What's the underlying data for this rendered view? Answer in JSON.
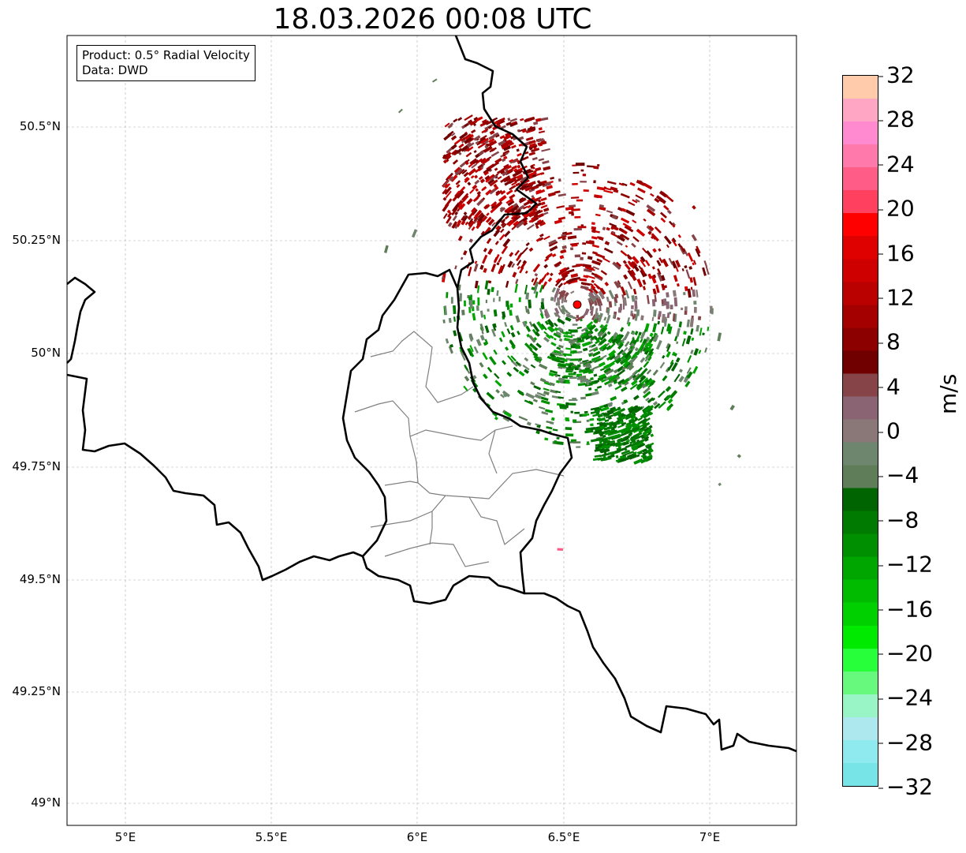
{
  "title": "18.03.2026 00:08 UTC",
  "info": {
    "product": "Product: 0.5° Radial Velocity",
    "data_source": "Data: DWD"
  },
  "axes": {
    "lat_ticks": [
      "50.5°N",
      "50.25°N",
      "50°N",
      "49.75°N",
      "49.5°N",
      "49.25°N",
      "49°N"
    ],
    "lon_ticks": [
      "5°E",
      "5.5°E",
      "6°E",
      "6.5°E",
      "7°E"
    ],
    "lon_range": [
      4.8,
      7.3
    ],
    "lat_range": [
      48.95,
      50.7
    ]
  },
  "radar_site": {
    "lon": 6.547,
    "lat": 50.11,
    "color": "#ff0000"
  },
  "colorbar": {
    "label": "m/s",
    "ticks": [
      "32",
      "28",
      "24",
      "20",
      "16",
      "12",
      "8",
      "4",
      "0",
      "−4",
      "−8",
      "−12",
      "−16",
      "−20",
      "−24",
      "−28",
      "−32"
    ],
    "colors_top_to_bottom": [
      "#ffcbaa",
      "#ffa6c4",
      "#ff8ad0",
      "#ff79aa",
      "#ff5c88",
      "#ff405f",
      "#ff0000",
      "#df0000",
      "#cf0000",
      "#bb0000",
      "#a50000",
      "#8c0000",
      "#700000",
      "#864448",
      "#8a6472",
      "#8a7878",
      "#6e866e",
      "#5e7d58",
      "#006400",
      "#007a00",
      "#008f00",
      "#00a600",
      "#00bb00",
      "#00cf00",
      "#00ea00",
      "#27ff3b",
      "#66f97d",
      "#99f5c6",
      "#ade8ee",
      "#8feaef",
      "#77e5e8"
    ]
  },
  "colors": {
    "border": "#000000",
    "admin": "#808080",
    "grid": "#b0b0b0",
    "inbound": "#0c800c",
    "outbound": "#a00000"
  }
}
